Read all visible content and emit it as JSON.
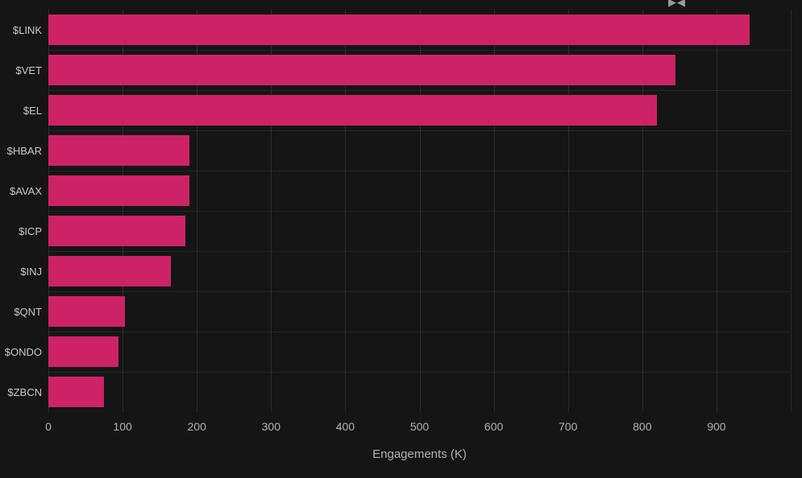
{
  "page": {
    "background": "#151515",
    "accent": "#cd2366"
  },
  "header": {
    "logo_glyph": "▶◀"
  },
  "chart_data": {
    "type": "bar",
    "orientation": "horizontal",
    "title": "",
    "xlabel": "Engagements (K)",
    "ylabel": "",
    "categories": [
      "$LINK",
      "$VET",
      "$EL",
      "$HBAR",
      "$AVAX",
      "$ICP",
      "$INJ",
      "$QNT",
      "$ONDO",
      "$ZBCN"
    ],
    "values": [
      945,
      845,
      820,
      190,
      190,
      185,
      165,
      103,
      95,
      75
    ],
    "xlim": [
      0,
      1000
    ],
    "xticks": [
      0,
      100,
      200,
      300,
      400,
      500,
      600,
      700,
      800,
      900
    ],
    "grid": true,
    "legend": false,
    "bar_color": "#cd2366"
  }
}
